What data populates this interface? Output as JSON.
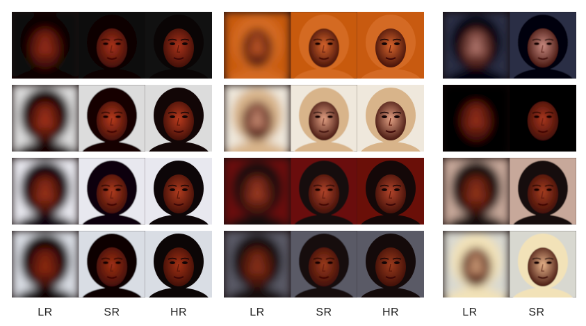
{
  "figure": {
    "labels": [
      "LR",
      "SR",
      "HR",
      "LR",
      "SR",
      "HR",
      "LR",
      "SR"
    ]
  },
  "tile_types": [
    "LR",
    "SR",
    "HR"
  ],
  "groups": [
    {
      "columns": [
        "LR",
        "SR",
        "HR"
      ],
      "rows": [
        {
          "bg": "#111111",
          "skin": "#a8321a",
          "hair": "#0a0505"
        },
        {
          "bg": "#dcdcdc",
          "skin": "#b83a1d",
          "hair": "#120606"
        },
        {
          "bg": "#e8e8ef",
          "skin": "#b03b1e",
          "hair": "#0d0608"
        },
        {
          "bg": "#d9dde4",
          "skin": "#a13014",
          "hair": "#0c0606"
        }
      ]
    },
    {
      "columns": [
        "LR",
        "SR",
        "HR"
      ],
      "rows": [
        {
          "bg": "#c85a10",
          "skin": "#d8642c",
          "hair": "#d46a24"
        },
        {
          "bg": "#efe8dc",
          "skin": "#e2a083",
          "hair": "#d8b48a"
        },
        {
          "bg": "#6a0f08",
          "skin": "#b2442a",
          "hair": "#140808"
        },
        {
          "bg": "#5a5a66",
          "skin": "#9a3a1c",
          "hair": "#140a0a"
        }
      ]
    },
    {
      "columns": [
        "LR",
        "SR"
      ],
      "rows": [
        {
          "bg": "#2a2e45",
          "skin": "#c98a80",
          "hair": "#05050a"
        },
        {
          "bg": "#050303",
          "skin": "#a8361e",
          "hair": "#050303"
        },
        {
          "bg": "#c7a89a",
          "skin": "#a63d20",
          "hair": "#140808"
        },
        {
          "bg": "#d8d8d0",
          "skin": "#e8b48a",
          "hair": "#f2e2b8"
        }
      ]
    }
  ]
}
